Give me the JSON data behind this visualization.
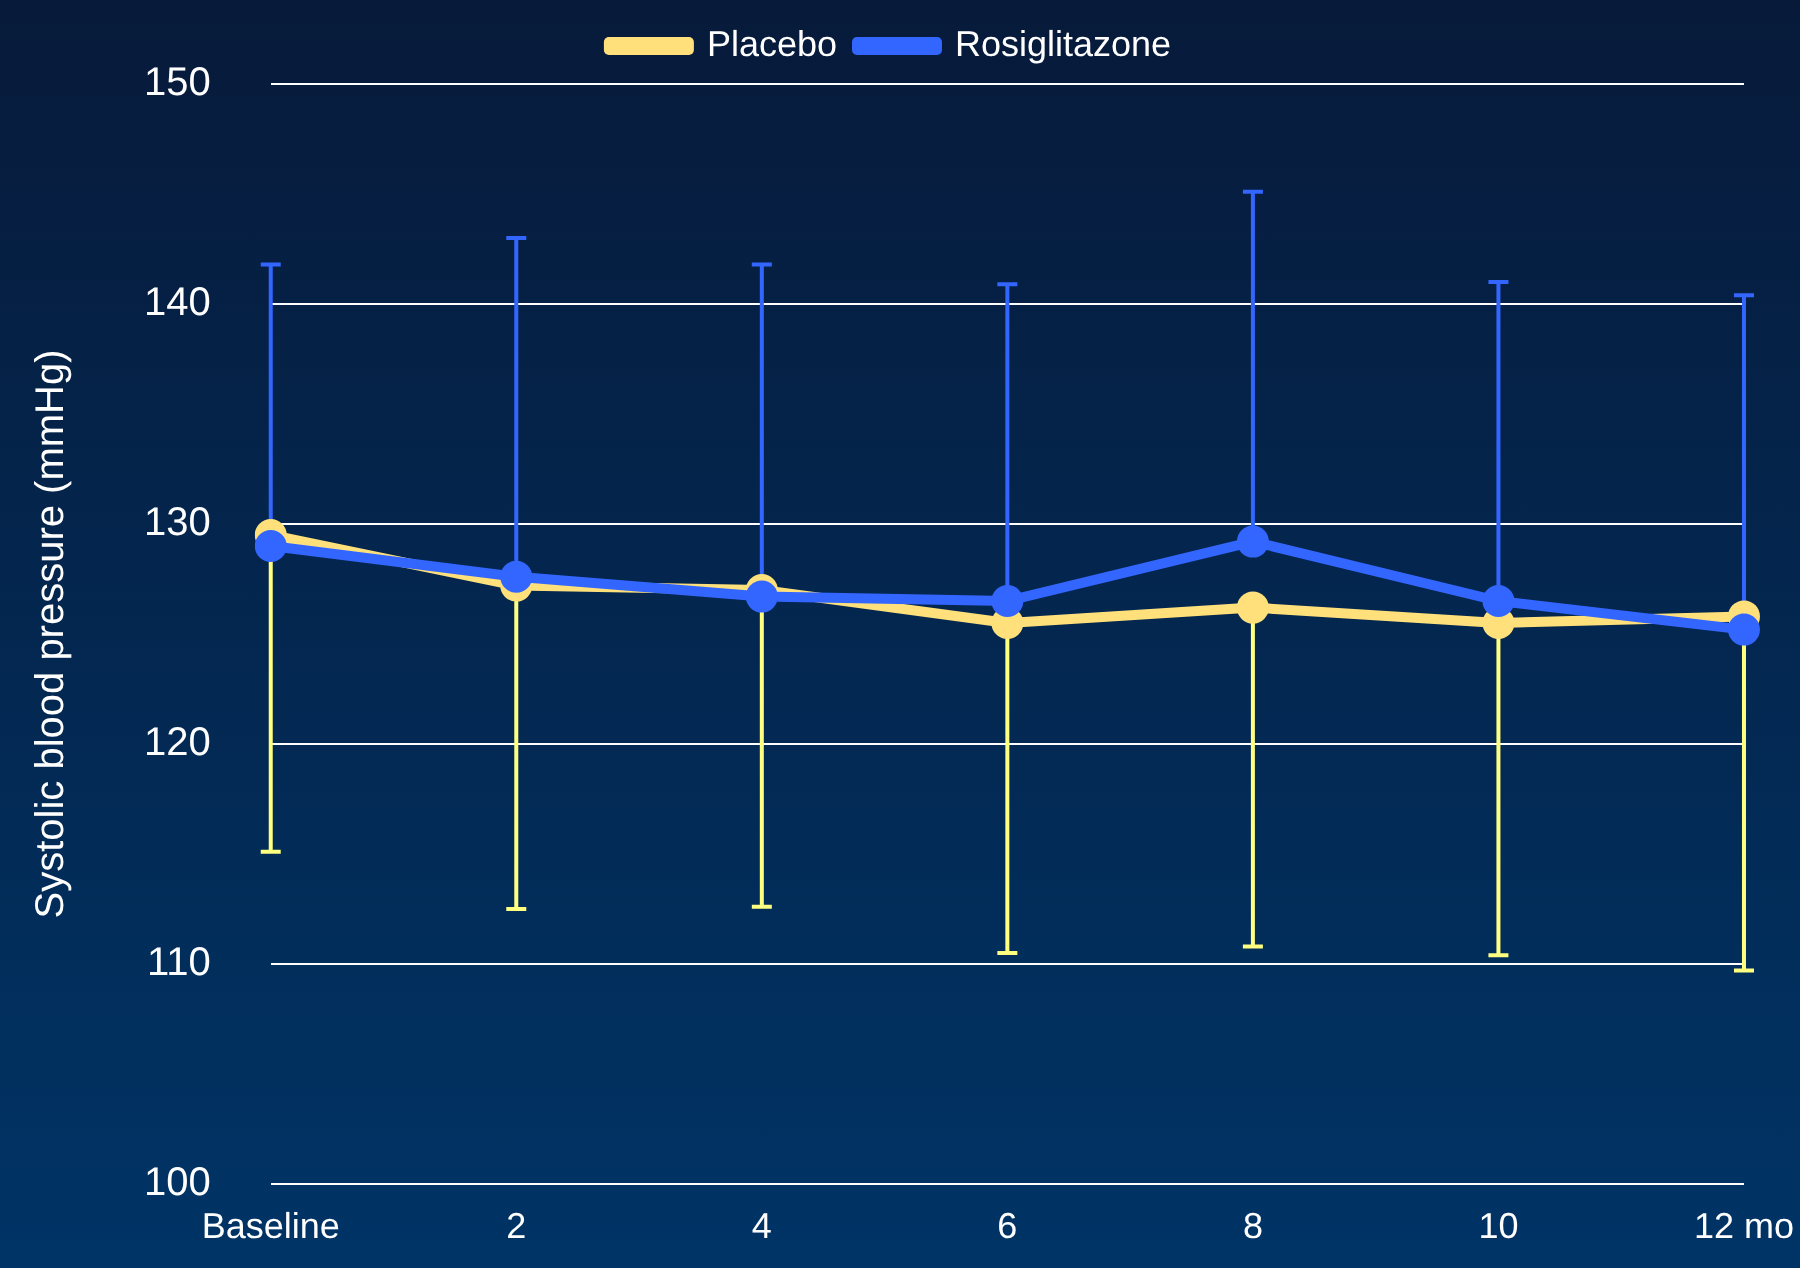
{
  "chart_data": {
    "type": "line",
    "ylabel": "Systolic blood pressure (mmHg)",
    "categories": [
      "Baseline",
      "2",
      "4",
      "6",
      "8",
      "10",
      "12 mo"
    ],
    "series": [
      {
        "name": "Placebo",
        "color": "#ffe07a",
        "values": [
          129.5,
          127.2,
          127.0,
          125.5,
          126.2,
          125.5,
          125.8
        ],
        "errors": [
          [
            115.1,
            129.5
          ],
          [
            112.5,
            127.2
          ],
          [
            112.6,
            127.0
          ],
          [
            110.5,
            125.5
          ],
          [
            110.8,
            126.2
          ],
          [
            110.4,
            125.5
          ],
          [
            109.7,
            125.8
          ]
        ]
      },
      {
        "name": "Rosiglitazone",
        "color": "#3366ff",
        "values": [
          129.0,
          127.6,
          126.7,
          126.5,
          129.2,
          126.5,
          125.2
        ],
        "errors": [
          [
            129.0,
            141.8
          ],
          [
            127.6,
            143.0
          ],
          [
            126.7,
            141.8
          ],
          [
            126.5,
            140.9
          ],
          [
            129.2,
            145.1
          ],
          [
            126.5,
            141.0
          ],
          [
            125.2,
            140.4
          ]
        ]
      }
    ],
    "ylim": [
      100,
      150
    ],
    "yticks": [
      100,
      110,
      120,
      130,
      140,
      150
    ],
    "grid": "y",
    "legend": "top",
    "marker": "circle",
    "line_style": "solid"
  }
}
